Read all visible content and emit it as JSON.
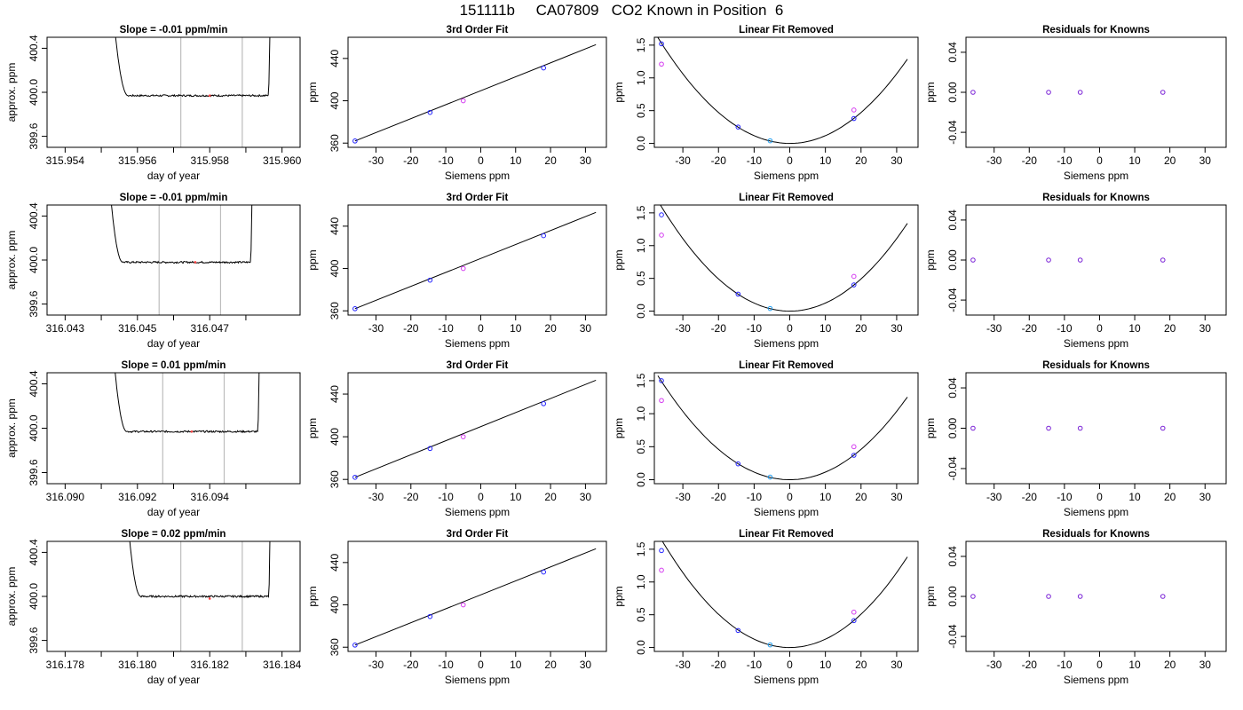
{
  "figure": {
    "title": "151111b     CA07809   CO2 Known in Position  6"
  },
  "colors": {
    "line": "#000000",
    "vline": "#bdbdbd",
    "point_blue": "#2222ff",
    "point_cyan": "#1e9cf0",
    "point_magenta": "#d43bf0",
    "point_purple": "#7a22d6",
    "point_red": "#ff4444"
  },
  "chart_data": [
    {
      "type": "line",
      "row": 0,
      "col": 0,
      "title": "Slope =  -0.01  ppm/min",
      "xlabel": "day of year",
      "ylabel": "approx. ppm",
      "xlim": [
        315.9535,
        315.9605
      ],
      "ylim": [
        399.5,
        400.5
      ],
      "xticks": [
        315.954,
        315.956,
        315.958,
        315.96
      ],
      "xtick_labels": [
        "315.954",
        "315.956",
        "315.958",
        "315.960"
      ],
      "xminor": [
        315.955,
        315.957,
        315.959
      ],
      "yticks": [
        399.6,
        400.0,
        400.4
      ],
      "ytick_labels": [
        "399.6",
        "400.0",
        "400.4"
      ],
      "vlines": [
        315.9572,
        315.9589
      ],
      "x_start": 315.9552,
      "x_end": 315.9597,
      "plateau": 399.97,
      "marker": [
        315.958,
        399.97
      ]
    },
    {
      "type": "line",
      "row": 1,
      "col": 0,
      "title": "Slope =  -0.01  ppm/min",
      "xlabel": "day of year",
      "ylabel": "approx. ppm",
      "xlim": [
        316.0425,
        316.0495
      ],
      "ylim": [
        399.5,
        400.5
      ],
      "xticks": [
        316.043,
        316.045,
        316.047
      ],
      "xtick_labels": [
        "316.043",
        "316.045",
        "316.047"
      ],
      "xminor": [
        316.044,
        316.046,
        316.048
      ],
      "yticks": [
        399.6,
        400.0,
        400.4
      ],
      "ytick_labels": [
        "399.6",
        "400.0",
        "400.4"
      ],
      "vlines": [
        316.0456,
        316.0473
      ],
      "x_start": 316.0441,
      "x_end": 316.0482,
      "plateau": 399.98,
      "marker": [
        316.0466,
        399.98
      ]
    },
    {
      "type": "line",
      "row": 2,
      "col": 0,
      "title": "Slope =  0.01  ppm/min",
      "xlabel": "day of year",
      "ylabel": "approx. ppm",
      "xlim": [
        316.0895,
        316.0965
      ],
      "ylim": [
        399.5,
        400.5
      ],
      "xticks": [
        316.09,
        316.092,
        316.094
      ],
      "xtick_labels": [
        "316.090",
        "316.092",
        "316.094"
      ],
      "xminor": [
        316.091,
        316.093,
        316.095
      ],
      "yticks": [
        399.6,
        400.0,
        400.4
      ],
      "ytick_labels": [
        "399.6",
        "400.0",
        "400.4"
      ],
      "vlines": [
        316.0927,
        316.0944
      ],
      "x_start": 316.0912,
      "x_end": 316.0954,
      "plateau": 399.97,
      "marker": [
        316.0935,
        399.97
      ]
    },
    {
      "type": "line",
      "row": 3,
      "col": 0,
      "title": "Slope =  0.02  ppm/min",
      "xlabel": "day of year",
      "ylabel": "approx. ppm",
      "xlim": [
        316.1775,
        316.1845
      ],
      "ylim": [
        399.5,
        400.5
      ],
      "xticks": [
        316.178,
        316.18,
        316.182,
        316.184
      ],
      "xtick_labels": [
        "316.178",
        "316.180",
        "316.182",
        "316.184"
      ],
      "xminor": [
        316.179,
        316.181,
        316.183
      ],
      "yticks": [
        399.6,
        400.0,
        400.4
      ],
      "ytick_labels": [
        "399.6",
        "400.0",
        "400.4"
      ],
      "vlines": [
        316.1812,
        316.1829
      ],
      "x_start": 316.1796,
      "x_end": 316.1837,
      "plateau": 400.0,
      "marker": [
        316.182,
        399.98
      ]
    },
    {
      "type": "scatter",
      "row": 0,
      "col": 1,
      "title": "3rd Order Fit",
      "xlabel": "Siemens ppm",
      "ylabel": "ppm",
      "xlim": [
        -38,
        36
      ],
      "ylim": [
        356,
        460
      ],
      "xticks": [
        -30,
        -20,
        -10,
        0,
        10,
        20,
        30
      ],
      "xtick_labels": [
        "-30",
        "-20",
        "-10",
        "0",
        "10",
        "20",
        "30"
      ],
      "yticks": [
        360,
        400,
        440
      ],
      "ytick_labels": [
        "360",
        "400",
        "440"
      ],
      "fit_line": [
        [
          -36,
          362
        ],
        [
          33,
          453
        ]
      ],
      "points": [
        {
          "x": -36,
          "y": 362,
          "color": "point_blue"
        },
        {
          "x": -14.5,
          "y": 389,
          "color": "point_blue"
        },
        {
          "x": -5,
          "y": 400,
          "color": "point_magenta"
        },
        {
          "x": 18,
          "y": 431,
          "color": "point_blue"
        }
      ]
    },
    {
      "type": "scatter",
      "row": 1,
      "col": 1,
      "title": "3rd Order Fit",
      "xlabel": "Siemens ppm",
      "ylabel": "ppm",
      "xlim": [
        -38,
        36
      ],
      "ylim": [
        356,
        460
      ],
      "xticks": [
        -30,
        -20,
        -10,
        0,
        10,
        20,
        30
      ],
      "xtick_labels": [
        "-30",
        "-20",
        "-10",
        "0",
        "10",
        "20",
        "30"
      ],
      "yticks": [
        360,
        400,
        440
      ],
      "ytick_labels": [
        "360",
        "400",
        "440"
      ],
      "fit_line": [
        [
          -36,
          362
        ],
        [
          33,
          453
        ]
      ],
      "points": [
        {
          "x": -36,
          "y": 362,
          "color": "point_blue"
        },
        {
          "x": -14.5,
          "y": 389,
          "color": "point_blue"
        },
        {
          "x": -5,
          "y": 400,
          "color": "point_magenta"
        },
        {
          "x": 18,
          "y": 431,
          "color": "point_blue"
        }
      ]
    },
    {
      "type": "scatter",
      "row": 2,
      "col": 1,
      "title": "3rd Order Fit",
      "xlabel": "Siemens ppm",
      "ylabel": "ppm",
      "xlim": [
        -38,
        36
      ],
      "ylim": [
        356,
        460
      ],
      "xticks": [
        -30,
        -20,
        -10,
        0,
        10,
        20,
        30
      ],
      "xtick_labels": [
        "-30",
        "-20",
        "-10",
        "0",
        "10",
        "20",
        "30"
      ],
      "yticks": [
        360,
        400,
        440
      ],
      "ytick_labels": [
        "360",
        "400",
        "440"
      ],
      "fit_line": [
        [
          -36,
          362
        ],
        [
          33,
          453
        ]
      ],
      "points": [
        {
          "x": -36,
          "y": 362,
          "color": "point_blue"
        },
        {
          "x": -14.5,
          "y": 389,
          "color": "point_blue"
        },
        {
          "x": -5,
          "y": 400,
          "color": "point_magenta"
        },
        {
          "x": 18,
          "y": 431,
          "color": "point_blue"
        }
      ]
    },
    {
      "type": "scatter",
      "row": 3,
      "col": 1,
      "title": "3rd Order Fit",
      "xlabel": "Siemens ppm",
      "ylabel": "ppm",
      "xlim": [
        -38,
        36
      ],
      "ylim": [
        356,
        460
      ],
      "xticks": [
        -30,
        -20,
        -10,
        0,
        10,
        20,
        30
      ],
      "xtick_labels": [
        "-30",
        "-20",
        "-10",
        "0",
        "10",
        "20",
        "30"
      ],
      "yticks": [
        360,
        400,
        440
      ],
      "ytick_labels": [
        "360",
        "400",
        "440"
      ],
      "fit_line": [
        [
          -36,
          362
        ],
        [
          33,
          453
        ]
      ],
      "points": [
        {
          "x": -36,
          "y": 362,
          "color": "point_blue"
        },
        {
          "x": -14.5,
          "y": 389,
          "color": "point_blue"
        },
        {
          "x": -5,
          "y": 400,
          "color": "point_magenta"
        },
        {
          "x": 18,
          "y": 431,
          "color": "point_blue"
        }
      ]
    },
    {
      "type": "scatter",
      "row": 0,
      "col": 2,
      "title": "Linear Fit Removed",
      "xlabel": "Siemens ppm",
      "ylabel": "ppm",
      "xlim": [
        -38,
        36
      ],
      "ylim": [
        -0.06,
        1.62
      ],
      "xticks": [
        -30,
        -20,
        -10,
        0,
        10,
        20,
        30
      ],
      "xtick_labels": [
        "-30",
        "-20",
        "-10",
        "0",
        "10",
        "20",
        "30"
      ],
      "yticks": [
        0,
        0.5,
        1,
        1.5
      ],
      "ytick_labels": [
        "0.0",
        "0.5",
        "1.0",
        "1.5"
      ],
      "curve_coef": 0.00118,
      "points": [
        {
          "x": -36,
          "y": 1.52,
          "color": "point_blue"
        },
        {
          "x": -36,
          "y": 1.21,
          "color": "point_magenta"
        },
        {
          "x": -14.5,
          "y": 0.25,
          "color": "point_blue"
        },
        {
          "x": -5.5,
          "y": 0.04,
          "color": "point_cyan"
        },
        {
          "x": 18,
          "y": 0.38,
          "color": "point_blue"
        },
        {
          "x": 18,
          "y": 0.51,
          "color": "point_magenta"
        }
      ]
    },
    {
      "type": "scatter",
      "row": 1,
      "col": 2,
      "title": "Linear Fit Removed",
      "xlabel": "Siemens ppm",
      "ylabel": "ppm",
      "xlim": [
        -38,
        36
      ],
      "ylim": [
        -0.06,
        1.62
      ],
      "xticks": [
        -30,
        -20,
        -10,
        0,
        10,
        20,
        30
      ],
      "xtick_labels": [
        "-30",
        "-20",
        "-10",
        "0",
        "10",
        "20",
        "30"
      ],
      "yticks": [
        0,
        0.5,
        1,
        1.5
      ],
      "ytick_labels": [
        "0.0",
        "0.5",
        "1.0",
        "1.5"
      ],
      "curve_coef": 0.00123,
      "points": [
        {
          "x": -36,
          "y": 1.47,
          "color": "point_blue"
        },
        {
          "x": -36,
          "y": 1.16,
          "color": "point_magenta"
        },
        {
          "x": -14.5,
          "y": 0.26,
          "color": "point_blue"
        },
        {
          "x": -5.5,
          "y": 0.04,
          "color": "point_cyan"
        },
        {
          "x": 18,
          "y": 0.4,
          "color": "point_blue"
        },
        {
          "x": 18,
          "y": 0.53,
          "color": "point_magenta"
        }
      ]
    },
    {
      "type": "scatter",
      "row": 2,
      "col": 2,
      "title": "Linear Fit Removed",
      "xlabel": "Siemens ppm",
      "ylabel": "ppm",
      "xlim": [
        -38,
        36
      ],
      "ylim": [
        -0.06,
        1.62
      ],
      "xticks": [
        -30,
        -20,
        -10,
        0,
        10,
        20,
        30
      ],
      "xtick_labels": [
        "-30",
        "-20",
        "-10",
        "0",
        "10",
        "20",
        "30"
      ],
      "yticks": [
        0,
        0.5,
        1,
        1.5
      ],
      "ytick_labels": [
        "0.0",
        "0.5",
        "1.0",
        "1.5"
      ],
      "curve_coef": 0.00115,
      "points": [
        {
          "x": -36,
          "y": 1.5,
          "color": "point_blue"
        },
        {
          "x": -36,
          "y": 1.2,
          "color": "point_magenta"
        },
        {
          "x": -14.5,
          "y": 0.24,
          "color": "point_blue"
        },
        {
          "x": -5.5,
          "y": 0.04,
          "color": "point_cyan"
        },
        {
          "x": 18,
          "y": 0.37,
          "color": "point_blue"
        },
        {
          "x": 18,
          "y": 0.5,
          "color": "point_magenta"
        }
      ]
    },
    {
      "type": "scatter",
      "row": 3,
      "col": 2,
      "title": "Linear Fit Removed",
      "xlabel": "Siemens ppm",
      "ylabel": "ppm",
      "xlim": [
        -38,
        36
      ],
      "ylim": [
        -0.06,
        1.62
      ],
      "xticks": [
        -30,
        -20,
        -10,
        0,
        10,
        20,
        30
      ],
      "xtick_labels": [
        "-30",
        "-20",
        "-10",
        "0",
        "10",
        "20",
        "30"
      ],
      "yticks": [
        0,
        0.5,
        1,
        1.5
      ],
      "ytick_labels": [
        "0.0",
        "0.5",
        "1.0",
        "1.5"
      ],
      "curve_coef": 0.00127,
      "points": [
        {
          "x": -36,
          "y": 1.48,
          "color": "point_blue"
        },
        {
          "x": -36,
          "y": 1.18,
          "color": "point_magenta"
        },
        {
          "x": -14.5,
          "y": 0.26,
          "color": "point_blue"
        },
        {
          "x": -5.5,
          "y": 0.04,
          "color": "point_cyan"
        },
        {
          "x": 18,
          "y": 0.41,
          "color": "point_blue"
        },
        {
          "x": 18,
          "y": 0.54,
          "color": "point_magenta"
        }
      ]
    },
    {
      "type": "scatter",
      "row": 0,
      "col": 3,
      "title": "Residuals for Knowns",
      "xlabel": "Siemens ppm",
      "ylabel": "ppm",
      "xlim": [
        -38,
        36
      ],
      "ylim": [
        -0.055,
        0.055
      ],
      "xticks": [
        -30,
        -20,
        -10,
        0,
        10,
        20,
        30
      ],
      "xtick_labels": [
        "-30",
        "-20",
        "-10",
        "0",
        "10",
        "20",
        "30"
      ],
      "yticks": [
        -0.04,
        0,
        0.04
      ],
      "ytick_labels": [
        "-0.04",
        "0.00",
        "0.04"
      ],
      "points": [
        {
          "x": -36,
          "y": 0,
          "color": "point_purple"
        },
        {
          "x": -14.5,
          "y": 0,
          "color": "point_purple"
        },
        {
          "x": -5.5,
          "y": 0,
          "color": "point_purple"
        },
        {
          "x": 18,
          "y": 0,
          "color": "point_purple"
        }
      ]
    },
    {
      "type": "scatter",
      "row": 1,
      "col": 3,
      "title": "Residuals for Knowns",
      "xlabel": "Siemens ppm",
      "ylabel": "ppm",
      "xlim": [
        -38,
        36
      ],
      "ylim": [
        -0.055,
        0.055
      ],
      "xticks": [
        -30,
        -20,
        -10,
        0,
        10,
        20,
        30
      ],
      "xtick_labels": [
        "-30",
        "-20",
        "-10",
        "0",
        "10",
        "20",
        "30"
      ],
      "yticks": [
        -0.04,
        0,
        0.04
      ],
      "ytick_labels": [
        "-0.04",
        "0.00",
        "0.04"
      ],
      "points": [
        {
          "x": -36,
          "y": 0,
          "color": "point_purple"
        },
        {
          "x": -14.5,
          "y": 0,
          "color": "point_purple"
        },
        {
          "x": -5.5,
          "y": 0,
          "color": "point_purple"
        },
        {
          "x": 18,
          "y": 0,
          "color": "point_purple"
        }
      ]
    },
    {
      "type": "scatter",
      "row": 2,
      "col": 3,
      "title": "Residuals for Knowns",
      "xlabel": "Siemens ppm",
      "ylabel": "ppm",
      "xlim": [
        -38,
        36
      ],
      "ylim": [
        -0.055,
        0.055
      ],
      "xticks": [
        -30,
        -20,
        -10,
        0,
        10,
        20,
        30
      ],
      "xtick_labels": [
        "-30",
        "-20",
        "-10",
        "0",
        "10",
        "20",
        "30"
      ],
      "yticks": [
        -0.04,
        0,
        0.04
      ],
      "ytick_labels": [
        "-0.04",
        "0.00",
        "0.04"
      ],
      "points": [
        {
          "x": -36,
          "y": 0,
          "color": "point_purple"
        },
        {
          "x": -14.5,
          "y": 0,
          "color": "point_purple"
        },
        {
          "x": -5.5,
          "y": 0,
          "color": "point_purple"
        },
        {
          "x": 18,
          "y": 0,
          "color": "point_purple"
        }
      ]
    },
    {
      "type": "scatter",
      "row": 3,
      "col": 3,
      "title": "Residuals for Knowns",
      "xlabel": "Siemens ppm",
      "ylabel": "ppm",
      "xlim": [
        -38,
        36
      ],
      "ylim": [
        -0.055,
        0.055
      ],
      "xticks": [
        -30,
        -20,
        -10,
        0,
        10,
        20,
        30
      ],
      "xtick_labels": [
        "-30",
        "-20",
        "-10",
        "0",
        "10",
        "20",
        "30"
      ],
      "yticks": [
        -0.04,
        0,
        0.04
      ],
      "ytick_labels": [
        "-0.04",
        "0.00",
        "0.04"
      ],
      "points": [
        {
          "x": -36,
          "y": 0,
          "color": "point_purple"
        },
        {
          "x": -14.5,
          "y": 0,
          "color": "point_purple"
        },
        {
          "x": -5.5,
          "y": 0,
          "color": "point_purple"
        },
        {
          "x": 18,
          "y": 0,
          "color": "point_purple"
        }
      ]
    }
  ]
}
